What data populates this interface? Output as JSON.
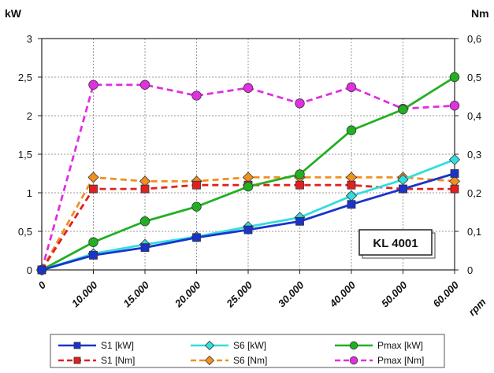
{
  "chart_data": {
    "type": "line",
    "x_unit_label": "rpm",
    "y_left_unit_label": "kW",
    "y_right_unit_label": "Nm",
    "badge": "KL 4001",
    "categories": [
      "0",
      "10.000",
      "15.000",
      "20.000",
      "25.000",
      "30.000",
      "40.000",
      "50.000",
      "60.000"
    ],
    "y_left_ticks": [
      "0",
      "0,5",
      "1",
      "1,5",
      "2",
      "2,5",
      "3"
    ],
    "y_right_ticks": [
      "0",
      "0,1",
      "0,2",
      "0,3",
      "0,4",
      "0,5",
      "0,6"
    ],
    "ylim_left": [
      0,
      3
    ],
    "ylim_right": [
      0,
      0.6
    ],
    "grid": true,
    "legend_position": "bottom",
    "series": [
      {
        "name": "S1 [kW]",
        "axis": "left",
        "color": "#1a33cc",
        "marker": "square",
        "dashed": false,
        "values": [
          0,
          0.19,
          0.29,
          0.42,
          0.52,
          0.63,
          0.85,
          1.05,
          1.25
        ]
      },
      {
        "name": "S6 [kW]",
        "axis": "left",
        "color": "#33dddd",
        "marker": "diamond",
        "dashed": false,
        "values": [
          0,
          0.21,
          0.33,
          0.43,
          0.56,
          0.68,
          0.96,
          1.17,
          1.43
        ]
      },
      {
        "name": "Pmax [kW]",
        "axis": "left",
        "color": "#22b022",
        "marker": "circle",
        "dashed": false,
        "values": [
          0,
          0.36,
          0.63,
          0.82,
          1.08,
          1.24,
          1.81,
          2.08,
          2.5
        ]
      },
      {
        "name": "S1 [Nm]",
        "axis": "right",
        "color": "#e02020",
        "marker": "square",
        "dashed": true,
        "values": [
          0,
          0.21,
          0.21,
          0.22,
          0.22,
          0.22,
          0.22,
          0.21,
          0.21
        ]
      },
      {
        "name": "S6 [Nm]",
        "axis": "right",
        "color": "#f09020",
        "marker": "diamond",
        "dashed": true,
        "values": [
          0,
          0.24,
          0.23,
          0.23,
          0.24,
          0.24,
          0.24,
          0.24,
          0.23
        ]
      },
      {
        "name": "Pmax [Nm]",
        "axis": "right",
        "color": "#e030e0",
        "marker": "circle",
        "dashed": true,
        "values": [
          0,
          0.48,
          0.48,
          0.452,
          0.472,
          0.432,
          0.474,
          0.418,
          0.426
        ]
      }
    ]
  }
}
